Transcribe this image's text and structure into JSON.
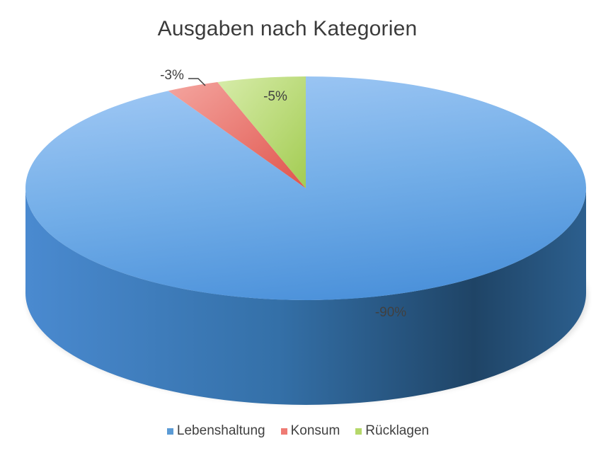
{
  "chart_data": {
    "type": "pie",
    "title": "Ausgaben nach Kategorien",
    "categories": [
      "Lebenshaltung",
      "Konsum",
      "Rücklagen"
    ],
    "values": [
      90,
      3,
      5
    ],
    "data_labels": [
      "-90%",
      "-3%",
      "-5%"
    ],
    "colors": [
      "#5b9bd5",
      "#ef7b74",
      "#b5d86a"
    ],
    "legend_position": "bottom",
    "three_d": true
  }
}
